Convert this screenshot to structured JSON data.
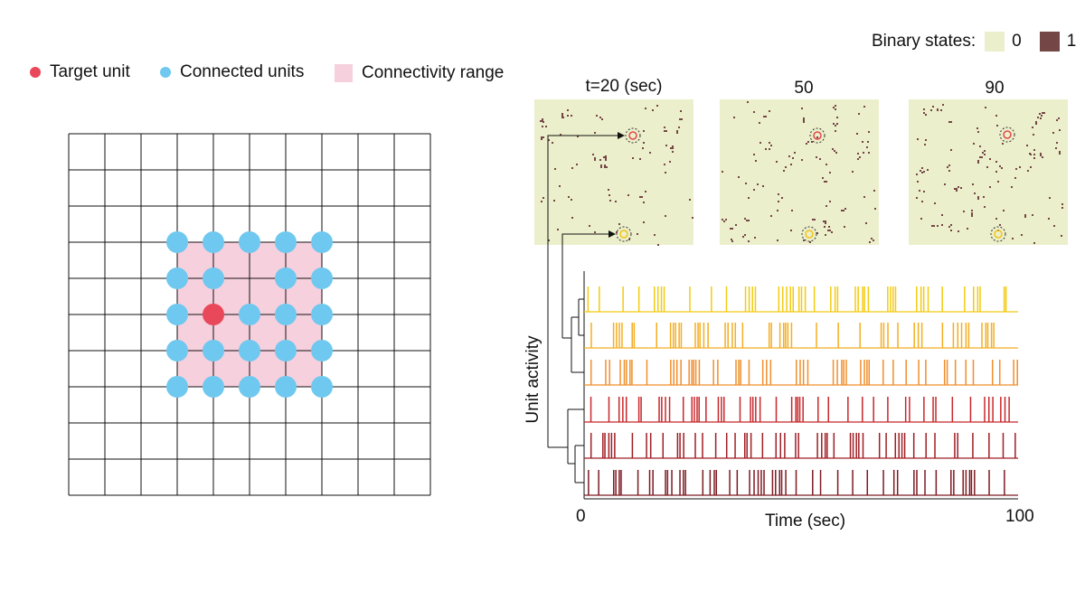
{
  "colors": {
    "target": "#E8485A",
    "connected": "#6EC8EF",
    "range": "#F7D0DD",
    "grid_line": "#111111",
    "state0": "#ECEFCB",
    "state1": "#744646",
    "traces": [
      "#F2CB11",
      "#F3AE22",
      "#F08E2B",
      "#C8272B",
      "#A01E24",
      "#7E1A22"
    ],
    "marker_red": "#E24848",
    "marker_yellow": "#F0C419"
  },
  "legend_left": {
    "target_label": "Target unit",
    "connected_label": "Connected units",
    "range_label": "Connectivity range"
  },
  "binary_legend": {
    "title": "Binary states:",
    "zero_label": "0",
    "one_label": "1"
  },
  "snapshots": {
    "labels": [
      "t=20 (sec)",
      "50",
      "90"
    ]
  },
  "raster": {
    "ylabel": "Unit activity",
    "xlabel": "Time (sec)",
    "x_ticks": [
      "0",
      "100"
    ],
    "xlim": [
      0,
      100
    ],
    "num_units": 6
  },
  "grid": {
    "size": 10,
    "target": [
      5,
      4
    ],
    "connected": [
      [
        3,
        3
      ],
      [
        3,
        4
      ],
      [
        3,
        5
      ],
      [
        3,
        6
      ],
      [
        3,
        7
      ],
      [
        4,
        3
      ],
      [
        4,
        4
      ],
      [
        4,
        6
      ],
      [
        4,
        7
      ],
      [
        5,
        3
      ],
      [
        5,
        5
      ],
      [
        5,
        6
      ],
      [
        5,
        7
      ],
      [
        6,
        3
      ],
      [
        6,
        4
      ],
      [
        6,
        5
      ],
      [
        6,
        6
      ],
      [
        6,
        7
      ],
      [
        7,
        3
      ],
      [
        7,
        4
      ],
      [
        7,
        5
      ],
      [
        7,
        6
      ],
      [
        7,
        7
      ]
    ]
  }
}
